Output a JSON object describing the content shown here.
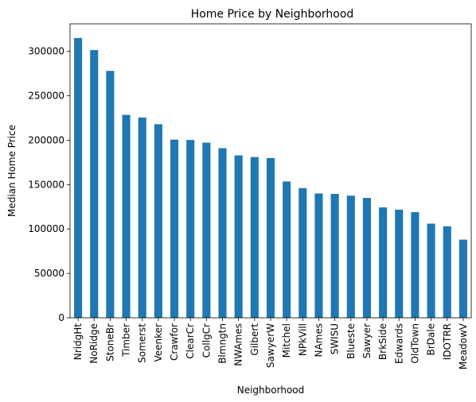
{
  "chart_data": {
    "type": "bar",
    "title": "Home Price by Neighborhood",
    "xlabel": "Neighborhood",
    "ylabel": "Median Home Price",
    "ylim": [
      0,
      331000
    ],
    "yticks": [
      "0",
      "50000",
      "100000",
      "150000",
      "200000",
      "250000",
      "300000"
    ],
    "grid": false,
    "bar_color": "#1f77b4",
    "categories": [
      "NridgHt",
      "NoRidge",
      "StoneBr",
      "Timber",
      "Somerst",
      "Veenker",
      "Crawfor",
      "ClearCr",
      "CollgCr",
      "Blmngtn",
      "NWAmes",
      "Gilbert",
      "SawyerW",
      "Mitchel",
      "NPkVill",
      "NAmes",
      "SWISU",
      "Blueste",
      "Sawyer",
      "BrkSide",
      "Edwards",
      "OldTown",
      "BrDale",
      "IDOTRR",
      "MeadowV"
    ],
    "values": [
      315000,
      301500,
      278000,
      228500,
      225500,
      218000,
      200600,
      200250,
      197200,
      191000,
      182900,
      181000,
      179900,
      153500,
      146000,
      140000,
      139500,
      137500,
      135000,
      124300,
      121750,
      119000,
      106000,
      103000,
      88000
    ]
  }
}
